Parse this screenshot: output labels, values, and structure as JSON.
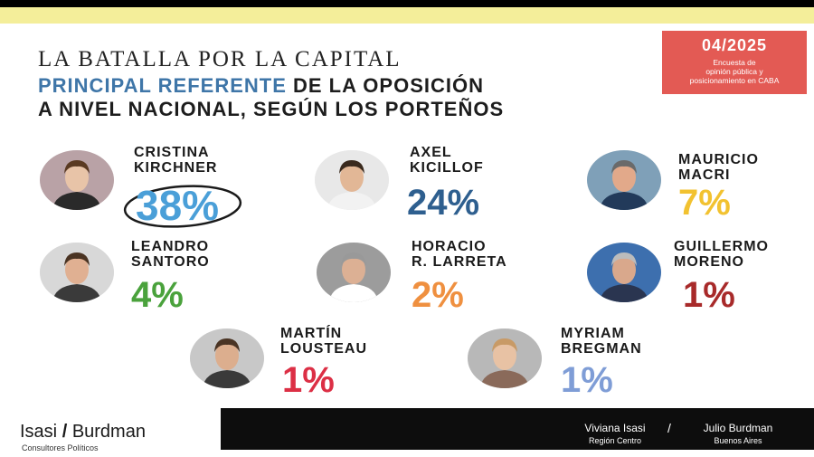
{
  "header": {
    "kicker": "LA BATALLA POR LA CAPITAL",
    "title_accent": "PRINCIPAL REFERENTE",
    "title_line1_rest": " DE LA OPOSICIÓN",
    "title_line2": "A NIVEL NACIONAL, SEGÚN LOS PORTEÑOS"
  },
  "datebox": {
    "date": "04/2025",
    "description_lines": [
      "Encuesta de",
      "opinión pública y",
      "posicionamiento en CABA"
    ]
  },
  "chart_data": {
    "type": "table",
    "title": "PRINCIPAL REFERENTE DE LA OPOSICIÓN A NIVEL NACIONAL, SEGÚN LOS PORTEÑOS",
    "unit": "%",
    "categories": [
      "Cristina Kirchner",
      "Axel Kicillof",
      "Mauricio Macri",
      "Leandro Santoro",
      "Horacio R. Larreta",
      "Guillermo Moreno",
      "Martín Lousteau",
      "Myriam Bregman"
    ],
    "values": [
      38,
      24,
      7,
      4,
      2,
      1,
      1,
      1
    ],
    "entries": [
      {
        "name_line1": "CRISTINA",
        "name_line2": "KIRCHNER",
        "label": "38%",
        "value": 38,
        "color": "#4a9fd8"
      },
      {
        "name_line1": "AXEL",
        "name_line2": "KICILLOF",
        "label": "24%",
        "value": 24,
        "color": "#2e5f8f"
      },
      {
        "name_line1": "MAURICIO",
        "name_line2": "MACRI",
        "label": "7%",
        "value": 7,
        "color": "#f2c230"
      },
      {
        "name_line1": "LEANDRO",
        "name_line2": "SANTORO",
        "label": "4%",
        "value": 4,
        "color": "#4aa23c"
      },
      {
        "name_line1": "HORACIO",
        "name_line2": "R. LARRETA",
        "label": "2%",
        "value": 2,
        "color": "#ef9040"
      },
      {
        "name_line1": "GUILLERMO",
        "name_line2": "MORENO",
        "label": "1%",
        "value": 1,
        "color": "#a82a2a"
      },
      {
        "name_line1": "MARTÍN",
        "name_line2": "LOUSTEAU",
        "label": "1%",
        "value": 1,
        "color": "#dc2f45"
      },
      {
        "name_line1": "MYRIAM",
        "name_line2": "BREGMAN",
        "label": "1%",
        "value": 1,
        "color": "#7f9dd6"
      }
    ]
  },
  "footer": {
    "brand_left": "Isasi",
    "brand_slash": "/",
    "brand_right": "Burdman",
    "brand_subtitle": "Consultores Políticos",
    "separator": "/",
    "people": [
      {
        "name": "Viviana Isasi",
        "region": "Región Centro"
      },
      {
        "name": "Julio Burdman",
        "region": "Buenos Aires"
      }
    ]
  }
}
